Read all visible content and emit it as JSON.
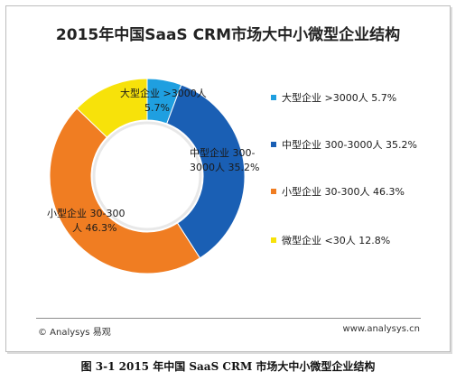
{
  "chart_data": {
    "type": "pie",
    "title": "2015年中国SaaS CRM市场大中小微型企业结构",
    "series": [
      {
        "name": "大型企业 >3000人",
        "value": 5.7,
        "label_line1": "大型企业 >3000人",
        "label_line2": "5.7%",
        "legend": "大型企业 >3000人  5.7%",
        "color": "#1f9fe0"
      },
      {
        "name": "中型企业 300-3000人",
        "value": 35.2,
        "label_line1": "中型企业 300-",
        "label_line2": "3000人  35.2%",
        "legend": "中型企业 300-3000人  35.2%",
        "color": "#1a5fb4"
      },
      {
        "name": "小型企业 30-300人",
        "value": 46.3,
        "label_line1": "小型企业 30-300",
        "label_line2": "人  46.3%",
        "legend": "小型企业 30-300人  46.3%",
        "color": "#f07d22"
      },
      {
        "name": "微型企业 <30人",
        "value": 12.8,
        "label_line1": "",
        "label_line2": "",
        "legend": "微型企业 <30人  12.8%",
        "color": "#f7e20a"
      }
    ],
    "legend_position": "right"
  },
  "source_left": "© Analysys 易观",
  "source_right": "www.analysys.cn",
  "caption": "图 3-1 2015 年中国 SaaS CRM 市场大中小微型企业结构"
}
